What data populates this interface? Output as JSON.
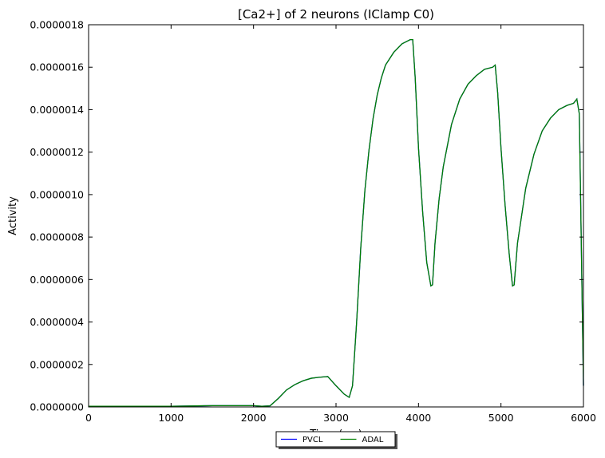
{
  "chart_data": {
    "type": "line",
    "title": "[Ca2+] of 2 neurons (IClamp C0)",
    "xlabel": "Time (ms)",
    "ylabel": "Activity",
    "xlim": [
      0,
      6000
    ],
    "ylim": [
      0,
      1.8e-06
    ],
    "x_ticks": [
      "0",
      "1000",
      "2000",
      "3000",
      "4000",
      "5000",
      "6000"
    ],
    "y_ticks": [
      "0.0000000",
      "0.0000002",
      "0.0000004",
      "0.0000006",
      "0.0000008",
      "0.0000010",
      "0.0000012",
      "0.0000014",
      "0.0000016",
      "0.0000018"
    ],
    "grid": false,
    "legend_position": "below-center",
    "series": [
      {
        "name": "PVCL",
        "color": "#0000ff",
        "x": [
          0,
          1000,
          1500,
          2000,
          2100,
          2200,
          2300,
          2400,
          2500,
          2600,
          2700,
          2800,
          2900,
          3000,
          3100,
          3160,
          3200,
          3250,
          3300,
          3350,
          3400,
          3450,
          3500,
          3550,
          3600,
          3700,
          3800,
          3900,
          3930,
          3960,
          4000,
          4050,
          4100,
          4150,
          4170,
          4200,
          4250,
          4300,
          4400,
          4500,
          4600,
          4700,
          4800,
          4900,
          4930,
          4960,
          5000,
          5050,
          5100,
          5140,
          5160,
          5200,
          5300,
          5400,
          5500,
          5600,
          5700,
          5800,
          5880,
          5900,
          5920,
          5950,
          6000
        ],
        "y": [
          3e-09,
          3e-09,
          6e-09,
          6e-09,
          3e-09,
          5e-09,
          4e-08,
          8e-08,
          1.05e-07,
          1.23e-07,
          1.35e-07,
          1.4e-07,
          1.43e-07,
          1e-07,
          6e-08,
          4.5e-08,
          1e-07,
          4e-07,
          7.5e-07,
          1.02e-06,
          1.21e-06,
          1.36e-06,
          1.47e-06,
          1.55e-06,
          1.61e-06,
          1.67e-06,
          1.71e-06,
          1.73e-06,
          1.73e-06,
          1.55e-06,
          1.22e-06,
          9.2e-07,
          6.8e-07,
          5.7e-07,
          5.75e-07,
          7.7e-07,
          9.8e-07,
          1.13e-06,
          1.33e-06,
          1.45e-06,
          1.52e-06,
          1.56e-06,
          1.59e-06,
          1.6e-06,
          1.61e-06,
          1.48e-06,
          1.22e-06,
          9.5e-07,
          7.2e-07,
          5.7e-07,
          5.75e-07,
          7.7e-07,
          1.03e-06,
          1.19e-06,
          1.3e-06,
          1.36e-06,
          1.4e-06,
          1.42e-06,
          1.43e-06,
          1.44e-06,
          1.45e-06,
          1.38e-06,
          1e-07
        ]
      },
      {
        "name": "ADAL",
        "color": "#008000",
        "x": [
          0,
          1000,
          1500,
          2000,
          2100,
          2200,
          2300,
          2400,
          2500,
          2600,
          2700,
          2800,
          2900,
          3000,
          3100,
          3160,
          3200,
          3250,
          3300,
          3350,
          3400,
          3450,
          3500,
          3550,
          3600,
          3700,
          3800,
          3900,
          3930,
          3960,
          4000,
          4050,
          4100,
          4150,
          4170,
          4200,
          4250,
          4300,
          4400,
          4500,
          4600,
          4700,
          4800,
          4900,
          4930,
          4960,
          5000,
          5050,
          5100,
          5140,
          5160,
          5200,
          5300,
          5400,
          5500,
          5600,
          5700,
          5800,
          5880,
          5900,
          5920,
          5950,
          6000
        ],
        "y": [
          3e-09,
          3e-09,
          6e-09,
          6e-09,
          3e-09,
          5e-09,
          4e-08,
          8e-08,
          1.05e-07,
          1.23e-07,
          1.35e-07,
          1.4e-07,
          1.43e-07,
          1e-07,
          6e-08,
          4.5e-08,
          1e-07,
          4e-07,
          7.5e-07,
          1.02e-06,
          1.21e-06,
          1.36e-06,
          1.47e-06,
          1.55e-06,
          1.61e-06,
          1.67e-06,
          1.71e-06,
          1.73e-06,
          1.73e-06,
          1.55e-06,
          1.22e-06,
          9.2e-07,
          6.8e-07,
          5.7e-07,
          5.75e-07,
          7.7e-07,
          9.8e-07,
          1.13e-06,
          1.33e-06,
          1.45e-06,
          1.52e-06,
          1.56e-06,
          1.59e-06,
          1.6e-06,
          1.61e-06,
          1.48e-06,
          1.22e-06,
          9.5e-07,
          7.2e-07,
          5.7e-07,
          5.75e-07,
          7.7e-07,
          1.03e-06,
          1.19e-06,
          1.3e-06,
          1.36e-06,
          1.4e-06,
          1.42e-06,
          1.43e-06,
          1.44e-06,
          1.45e-06,
          1.38e-06,
          1e-07
        ]
      }
    ]
  }
}
